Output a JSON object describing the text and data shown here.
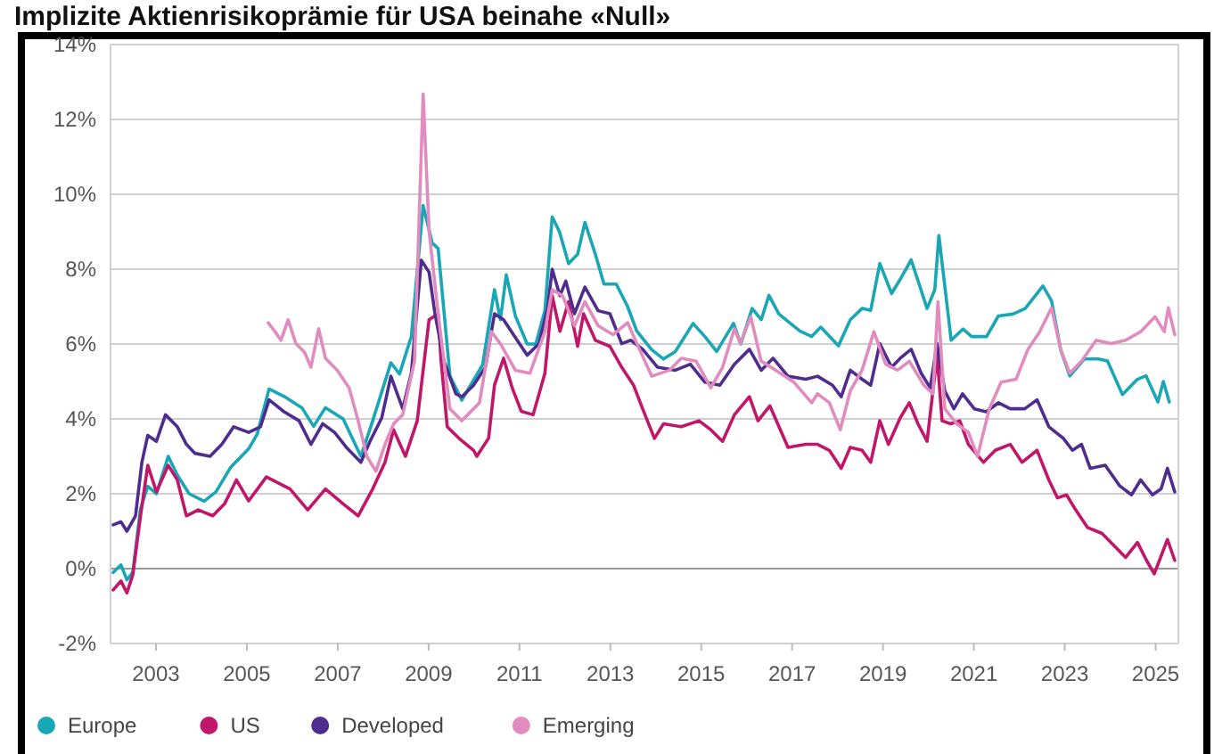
{
  "chart_data": {
    "type": "line",
    "title": "Implizite Aktienrisikoprämie für USA beinahe «Null»",
    "xlim": [
      2002,
      2025.5
    ],
    "xticks": [
      2003,
      2005,
      2007,
      2009,
      2011,
      2013,
      2015,
      2017,
      2019,
      2021,
      2023,
      2025
    ],
    "ylim": [
      -2,
      14
    ],
    "yticks": [
      {
        "value": -2,
        "label": "-2%"
      },
      {
        "value": 0,
        "label": "0%"
      },
      {
        "value": 2,
        "label": "2%"
      },
      {
        "value": 4,
        "label": "4%"
      },
      {
        "value": 6,
        "label": "6%"
      },
      {
        "value": 8,
        "label": "8%"
      },
      {
        "value": 10,
        "label": "10%"
      },
      {
        "value": 12,
        "label": "12%"
      },
      {
        "value": 14,
        "label": "14%"
      }
    ],
    "grid": "y",
    "legend": "bottom",
    "marker": "none",
    "line_style": "solid",
    "series": [
      {
        "name": "Europe",
        "color": "#1aa7b5",
        "x": [
          2002.06,
          2002.23,
          2002.36,
          2002.49,
          2002.66,
          2002.82,
          2003.01,
          2003.27,
          2003.47,
          2003.73,
          2004.06,
          2004.32,
          2004.64,
          2005.04,
          2005.23,
          2005.49,
          2005.82,
          2006.21,
          2006.47,
          2006.73,
          2007.12,
          2007.51,
          2007.77,
          2008.17,
          2008.36,
          2008.62,
          2008.88,
          2009.08,
          2009.21,
          2009.47,
          2009.73,
          2010.19,
          2010.45,
          2010.58,
          2010.71,
          2010.91,
          2011.17,
          2011.36,
          2011.56,
          2011.72,
          2011.88,
          2012.08,
          2012.28,
          2012.44,
          2012.67,
          2012.86,
          2013.13,
          2013.38,
          2013.58,
          2013.91,
          2014.17,
          2014.43,
          2014.82,
          2015.08,
          2015.34,
          2015.71,
          2015.87,
          2016.12,
          2016.32,
          2016.49,
          2016.71,
          2017.17,
          2017.43,
          2017.63,
          2018.02,
          2018.28,
          2018.54,
          2018.73,
          2018.93,
          2019.19,
          2019.39,
          2019.62,
          2019.97,
          2020.14,
          2020.23,
          2020.5,
          2020.76,
          2020.95,
          2021.28,
          2021.54,
          2021.86,
          2022.13,
          2022.52,
          2022.71,
          2022.91,
          2023.11,
          2023.43,
          2023.74,
          2023.94,
          2024.27,
          2024.59,
          2024.79,
          2025.05,
          2025.17,
          2025.3
        ],
        "values": [
          -0.1,
          0.1,
          -0.3,
          -0.1,
          1.6,
          2.2,
          2.0,
          3.0,
          2.5,
          2.0,
          1.8,
          2.05,
          2.7,
          3.2,
          3.6,
          4.8,
          4.6,
          4.3,
          3.8,
          4.3,
          4.0,
          3.0,
          3.95,
          5.5,
          5.2,
          6.2,
          9.7,
          8.7,
          8.55,
          5.15,
          4.5,
          5.45,
          7.45,
          6.65,
          7.85,
          6.75,
          6.0,
          6.0,
          6.9,
          9.4,
          9.0,
          8.15,
          8.4,
          9.25,
          8.4,
          7.6,
          7.6,
          7.0,
          6.35,
          5.85,
          5.6,
          5.8,
          6.55,
          6.2,
          5.8,
          6.55,
          6.0,
          6.95,
          6.65,
          7.3,
          6.8,
          6.35,
          6.2,
          6.45,
          5.95,
          6.65,
          6.95,
          6.9,
          8.15,
          7.35,
          7.75,
          8.25,
          6.95,
          7.45,
          8.9,
          6.1,
          6.4,
          6.2,
          6.2,
          6.75,
          6.8,
          6.95,
          7.55,
          7.15,
          5.85,
          5.15,
          5.6,
          5.6,
          5.55,
          4.65,
          5.05,
          5.15,
          4.45,
          5.0,
          4.45
        ]
      },
      {
        "name": "US",
        "color": "#c0176a",
        "x": [
          2002.06,
          2002.23,
          2002.36,
          2002.49,
          2002.66,
          2002.82,
          2003.01,
          2003.27,
          2003.47,
          2003.67,
          2003.93,
          2004.25,
          2004.51,
          2004.77,
          2005.04,
          2005.43,
          2005.69,
          2005.95,
          2006.34,
          2006.73,
          2007.12,
          2007.45,
          2007.77,
          2008.04,
          2008.23,
          2008.49,
          2008.75,
          2009.01,
          2009.21,
          2009.27,
          2009.41,
          2009.67,
          2009.99,
          2010.06,
          2010.32,
          2010.45,
          2010.65,
          2010.84,
          2011.04,
          2011.3,
          2011.56,
          2011.72,
          2011.89,
          2012.08,
          2012.28,
          2012.41,
          2012.67,
          2012.99,
          2013.25,
          2013.51,
          2013.71,
          2013.97,
          2014.17,
          2014.56,
          2014.95,
          2015.21,
          2015.47,
          2015.73,
          2016.06,
          2016.25,
          2016.51,
          2016.91,
          2017.3,
          2017.56,
          2017.82,
          2018.08,
          2018.28,
          2018.54,
          2018.73,
          2018.93,
          2019.12,
          2019.38,
          2019.58,
          2019.77,
          2019.97,
          2020.19,
          2020.3,
          2020.49,
          2020.69,
          2020.88,
          2021.21,
          2021.47,
          2021.8,
          2022.06,
          2022.39,
          2022.65,
          2022.84,
          2023.04,
          2023.24,
          2023.5,
          2023.82,
          2024.08,
          2024.34,
          2024.6,
          2024.8,
          2024.97,
          2025.26,
          2025.42
        ],
        "values": [
          -0.57,
          -0.33,
          -0.65,
          -0.17,
          1.41,
          2.76,
          2.05,
          2.76,
          2.37,
          1.41,
          1.57,
          1.41,
          1.73,
          2.37,
          1.81,
          2.45,
          2.29,
          2.13,
          1.57,
          2.13,
          1.73,
          1.41,
          2.13,
          2.84,
          3.71,
          3.0,
          3.95,
          6.65,
          6.81,
          5.62,
          3.79,
          3.48,
          3.16,
          3.0,
          3.48,
          4.9,
          5.62,
          4.83,
          4.2,
          4.11,
          5.22,
          7.29,
          6.34,
          7.13,
          5.94,
          6.81,
          6.1,
          5.94,
          5.38,
          4.9,
          4.27,
          3.48,
          3.87,
          3.79,
          3.95,
          3.71,
          3.4,
          4.11,
          4.59,
          3.95,
          4.35,
          3.24,
          3.32,
          3.32,
          3.16,
          2.68,
          3.24,
          3.16,
          2.84,
          3.95,
          3.32,
          4.03,
          4.43,
          3.87,
          3.4,
          5.7,
          3.95,
          3.87,
          3.95,
          3.32,
          2.84,
          3.16,
          3.32,
          2.84,
          3.16,
          2.37,
          1.89,
          1.97,
          1.57,
          1.1,
          0.94,
          0.62,
          0.3,
          0.7,
          0.22,
          -0.14,
          0.78,
          0.22
        ]
      },
      {
        "name": "Developed",
        "color": "#4e2d8f",
        "x": [
          2002.06,
          2002.23,
          2002.36,
          2002.55,
          2002.69,
          2002.82,
          2003.01,
          2003.21,
          2003.47,
          2003.67,
          2003.86,
          2004.19,
          2004.45,
          2004.71,
          2005.04,
          2005.3,
          2005.49,
          2005.82,
          2006.15,
          2006.41,
          2006.67,
          2006.93,
          2007.19,
          2007.51,
          2007.71,
          2007.97,
          2008.17,
          2008.43,
          2008.62,
          2008.84,
          2009.01,
          2009.14,
          2009.34,
          2009.6,
          2009.73,
          2009.99,
          2010.25,
          2010.45,
          2010.65,
          2010.91,
          2011.17,
          2011.43,
          2011.62,
          2011.72,
          2011.89,
          2012.02,
          2012.21,
          2012.44,
          2012.73,
          2012.99,
          2013.25,
          2013.45,
          2013.71,
          2014.04,
          2014.43,
          2014.76,
          2015.08,
          2015.41,
          2015.73,
          2016.06,
          2016.32,
          2016.58,
          2016.91,
          2017.3,
          2017.56,
          2017.89,
          2018.08,
          2018.28,
          2018.54,
          2018.73,
          2018.93,
          2019.19,
          2019.38,
          2019.62,
          2019.84,
          2020.04,
          2020.19,
          2020.36,
          2020.56,
          2020.75,
          2021.01,
          2021.27,
          2021.54,
          2021.8,
          2022.12,
          2022.39,
          2022.65,
          2022.97,
          2023.17,
          2023.37,
          2023.56,
          2023.89,
          2024.21,
          2024.47,
          2024.67,
          2024.93,
          2025.12,
          2025.26,
          2025.42
        ],
        "values": [
          1.17,
          1.25,
          1.0,
          1.41,
          2.84,
          3.56,
          3.4,
          4.11,
          3.79,
          3.32,
          3.08,
          3.0,
          3.32,
          3.79,
          3.64,
          3.79,
          4.51,
          4.19,
          3.95,
          3.32,
          3.87,
          3.64,
          3.24,
          2.84,
          3.4,
          4.03,
          5.14,
          4.27,
          5.22,
          8.24,
          7.92,
          6.81,
          5.54,
          4.67,
          4.59,
          4.9,
          5.38,
          6.81,
          6.65,
          6.17,
          5.7,
          6.01,
          6.97,
          8.0,
          7.29,
          7.68,
          6.81,
          7.52,
          6.89,
          6.81,
          6.01,
          6.1,
          5.86,
          5.38,
          5.3,
          5.46,
          4.98,
          4.9,
          5.46,
          5.86,
          5.3,
          5.62,
          5.14,
          5.06,
          5.14,
          4.9,
          4.59,
          5.3,
          5.06,
          4.9,
          6.01,
          5.38,
          5.62,
          5.86,
          5.22,
          4.83,
          6.01,
          4.75,
          4.27,
          4.67,
          4.27,
          4.19,
          4.43,
          4.27,
          4.27,
          4.51,
          3.79,
          3.48,
          3.16,
          3.32,
          2.68,
          2.76,
          2.21,
          1.97,
          2.37,
          1.97,
          2.13,
          2.68,
          2.05
        ]
      },
      {
        "name": "Emerging",
        "color": "#e08cbf",
        "x": [
          2005.47,
          2005.62,
          2005.75,
          2005.91,
          2006.08,
          2006.27,
          2006.41,
          2006.58,
          2006.73,
          2006.99,
          2007.25,
          2007.45,
          2007.64,
          2007.84,
          2008.04,
          2008.23,
          2008.43,
          2008.69,
          2008.88,
          2009.01,
          2009.21,
          2009.47,
          2009.73,
          2009.86,
          2010.12,
          2010.38,
          2010.58,
          2010.91,
          2011.23,
          2011.56,
          2011.72,
          2011.95,
          2012.21,
          2012.44,
          2012.73,
          2013.06,
          2013.38,
          2013.64,
          2013.91,
          2014.3,
          2014.56,
          2014.89,
          2015.21,
          2015.47,
          2015.73,
          2015.86,
          2016.09,
          2016.32,
          2016.64,
          2017.04,
          2017.43,
          2017.56,
          2017.82,
          2018.06,
          2018.28,
          2018.54,
          2018.8,
          2019.06,
          2019.32,
          2019.58,
          2019.9,
          2020.1,
          2020.21,
          2020.36,
          2020.62,
          2020.88,
          2021.08,
          2021.34,
          2021.6,
          2021.93,
          2022.19,
          2022.45,
          2022.71,
          2022.91,
          2023.11,
          2023.37,
          2023.69,
          2024.02,
          2024.34,
          2024.67,
          2024.99,
          2025.19,
          2025.28,
          2025.42
        ],
        "values": [
          6.57,
          6.33,
          6.1,
          6.65,
          6.01,
          5.78,
          5.38,
          6.41,
          5.62,
          5.3,
          4.83,
          3.95,
          3.0,
          2.6,
          3.32,
          3.87,
          4.11,
          5.54,
          12.68,
          9.03,
          6.81,
          4.27,
          3.95,
          4.11,
          4.43,
          6.33,
          6.01,
          5.3,
          5.22,
          6.33,
          7.45,
          7.29,
          6.49,
          7.13,
          6.49,
          6.25,
          6.57,
          5.86,
          5.14,
          5.3,
          5.62,
          5.54,
          4.83,
          5.38,
          6.41,
          6.01,
          6.73,
          5.54,
          5.3,
          4.98,
          4.43,
          4.67,
          4.43,
          3.71,
          4.75,
          5.3,
          6.33,
          5.46,
          5.3,
          5.54,
          4.9,
          4.67,
          7.13,
          4.27,
          3.87,
          3.64,
          3.0,
          4.27,
          4.98,
          5.06,
          5.86,
          6.33,
          6.97,
          5.86,
          5.22,
          5.54,
          6.1,
          6.01,
          6.1,
          6.33,
          6.73,
          6.33,
          6.97,
          6.25
        ]
      }
    ]
  }
}
